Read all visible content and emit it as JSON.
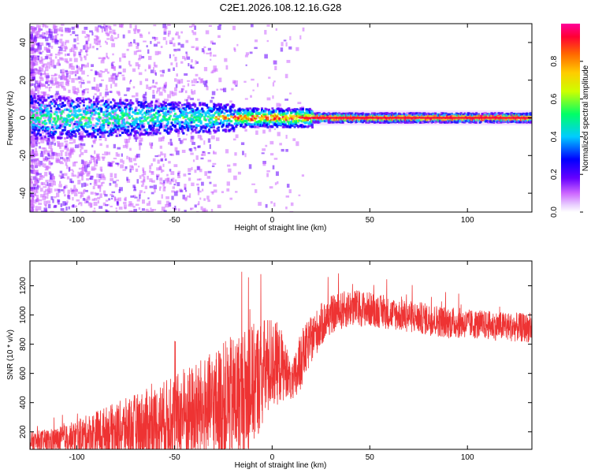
{
  "title": "C2E1.2026.108.12.16.G28",
  "chart_data": [
    {
      "type": "heatmap",
      "name": "spectrogram",
      "xlabel": "Height of straight line (km)",
      "ylabel": "Frequency (Hz)",
      "xlim": [
        -124,
        133
      ],
      "ylim": [
        -50,
        50
      ],
      "xticks": [
        -100,
        -50,
        0,
        50,
        100
      ],
      "xtick_labels": [
        "-100",
        "-50",
        "0",
        "50",
        "100"
      ],
      "yticks": [
        -40,
        -20,
        0,
        20,
        40
      ],
      "ytick_labels": [
        "-40",
        "-20",
        "0",
        "20",
        "40"
      ],
      "description_band": {
        "center_hz": 0,
        "halfwidth_hz_left": 10,
        "halfwidth_hz_right": 2
      },
      "colorbar": {
        "label": "Normalized spectral amplitude",
        "range": [
          0.0,
          1.0
        ],
        "ticks": [
          0.0,
          0.2,
          0.4,
          0.6,
          0.8
        ],
        "tick_labels": [
          "0.0",
          "0.2",
          "0.4",
          "0.6",
          "0.8"
        ],
        "colors": [
          "#ffffff",
          "#cc66ff",
          "#6600ff",
          "#0000ff",
          "#00ccff",
          "#00ff66",
          "#ccff00",
          "#ffcc00",
          "#ff6600",
          "#ff0033",
          "#ff0099"
        ]
      }
    },
    {
      "type": "line",
      "name": "snr",
      "xlabel": "Height of straight line (km)",
      "ylabel": "SNR (10 * v/v)",
      "xlim": [
        -124,
        133
      ],
      "ylim": [
        80,
        1370
      ],
      "xticks": [
        -100,
        -50,
        0,
        50,
        100
      ],
      "xtick_labels": [
        "-100",
        "-50",
        "0",
        "50",
        "100"
      ],
      "yticks": [
        200,
        400,
        600,
        800,
        1000,
        1200
      ],
      "ytick_labels": [
        "200",
        "400",
        "600",
        "800",
        "1000",
        "1200"
      ],
      "color": "#ee3333",
      "envelope": {
        "x": [
          -124,
          -110,
          -100,
          -90,
          -80,
          -70,
          -60,
          -50,
          -40,
          -30,
          -25,
          -20,
          -15,
          -10,
          -5,
          0,
          5,
          8,
          10,
          12,
          15,
          20,
          25,
          30,
          40,
          50,
          60,
          70,
          80,
          90,
          100,
          110,
          120,
          133
        ],
        "mean": [
          130,
          140,
          160,
          190,
          210,
          230,
          250,
          290,
          330,
          370,
          400,
          420,
          450,
          520,
          600,
          680,
          650,
          600,
          520,
          560,
          700,
          830,
          930,
          1000,
          1050,
          1040,
          1010,
          990,
          970,
          950,
          940,
          930,
          920,
          910
        ],
        "amp": [
          70,
          90,
          120,
          160,
          190,
          230,
          270,
          300,
          340,
          380,
          420,
          440,
          460,
          420,
          380,
          320,
          250,
          150,
          120,
          200,
          200,
          160,
          150,
          130,
          130,
          120,
          110,
          110,
          110,
          110,
          100,
          100,
          100,
          100
        ]
      }
    }
  ]
}
